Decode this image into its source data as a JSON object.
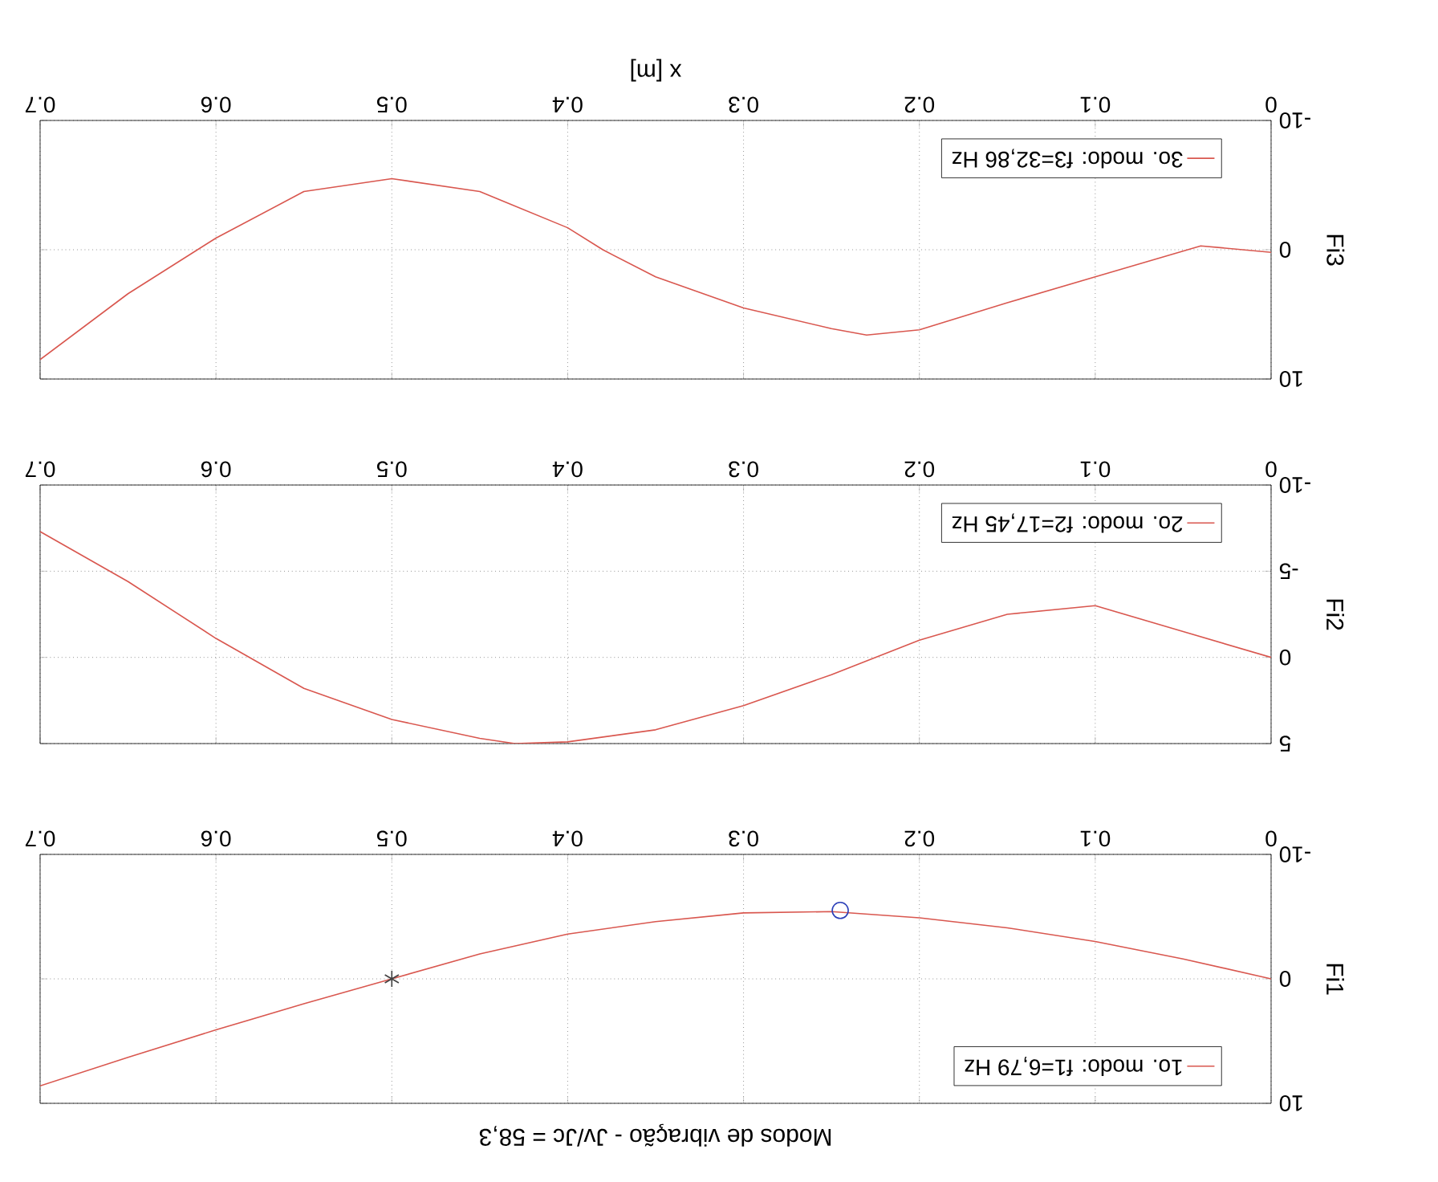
{
  "chart_data": [
    {
      "type": "line",
      "title": "Modos de vibração - Jv/Jc = 58,3",
      "ylabel": "Fi1",
      "xlim": [
        0.7,
        0
      ],
      "ylim": [
        10,
        -10
      ],
      "xticks": [
        0,
        0.1,
        0.2,
        0.3,
        0.4,
        0.5,
        0.6,
        0.7
      ],
      "yticks": [
        -10,
        0,
        10
      ],
      "grid": true,
      "legend": "bottom right",
      "series": [
        {
          "name": "1o. modo: f1=6,79 Hz",
          "color": "#d9574f",
          "x": [
            0,
            0.05,
            0.1,
            0.15,
            0.2,
            0.25,
            0.3,
            0.35,
            0.4,
            0.45,
            0.5,
            0.55,
            0.6,
            0.65,
            0.7
          ],
          "values": [
            0,
            -1.6,
            -3.0,
            -4.1,
            -4.9,
            -5.4,
            -5.3,
            -4.6,
            -3.6,
            -2.0,
            0,
            2.0,
            4.1,
            6.3,
            8.6
          ]
        },
        {
          "type": "scatter",
          "marker": "circle",
          "color": "#2b3fb8",
          "x": [
            0.245
          ],
          "values": [
            -5.5
          ]
        },
        {
          "type": "scatter",
          "marker": "cross",
          "color": "#404040",
          "x": [
            0.5
          ],
          "values": [
            0
          ]
        }
      ]
    },
    {
      "type": "line",
      "ylabel": "Fi2",
      "xlim": [
        0.7,
        0
      ],
      "ylim": [
        5,
        -10
      ],
      "xticks": [
        0,
        0.1,
        0.2,
        0.3,
        0.4,
        0.5,
        0.6,
        0.7
      ],
      "yticks": [
        -10,
        -5,
        0,
        5
      ],
      "grid": true,
      "legend": "top right",
      "series": [
        {
          "name": "2o. modo: f2=17,45 Hz",
          "color": "#d9574f",
          "x": [
            0,
            0.05,
            0.1,
            0.15,
            0.2,
            0.25,
            0.3,
            0.35,
            0.4,
            0.43,
            0.45,
            0.5,
            0.55,
            0.6,
            0.65,
            0.7
          ],
          "values": [
            0,
            -1.5,
            -3.0,
            -2.5,
            -1.0,
            1.0,
            2.8,
            4.2,
            4.9,
            5.0,
            4.7,
            3.6,
            1.8,
            -1.1,
            -4.4,
            -7.3
          ]
        }
      ]
    },
    {
      "type": "line",
      "ylabel": "Fi3",
      "xlabel": "x [m]",
      "xlim": [
        0.7,
        0
      ],
      "ylim": [
        10,
        -10
      ],
      "xticks": [
        0,
        0.1,
        0.2,
        0.3,
        0.4,
        0.5,
        0.6,
        0.7
      ],
      "yticks": [
        -10,
        0,
        10
      ],
      "grid": true,
      "legend": "top right",
      "series": [
        {
          "name": "3o. modo: f3=32,86 Hz",
          "color": "#d9574f",
          "x": [
            0,
            0.04,
            0.1,
            0.15,
            0.2,
            0.23,
            0.25,
            0.3,
            0.35,
            0.38,
            0.4,
            0.45,
            0.5,
            0.55,
            0.6,
            0.65,
            0.7
          ],
          "values": [
            0.2,
            -0.3,
            2.1,
            4.1,
            6.2,
            6.6,
            6.1,
            4.5,
            2.1,
            0,
            -1.7,
            -4.5,
            -5.5,
            -4.5,
            -0.9,
            3.4,
            8.5
          ]
        }
      ]
    }
  ]
}
